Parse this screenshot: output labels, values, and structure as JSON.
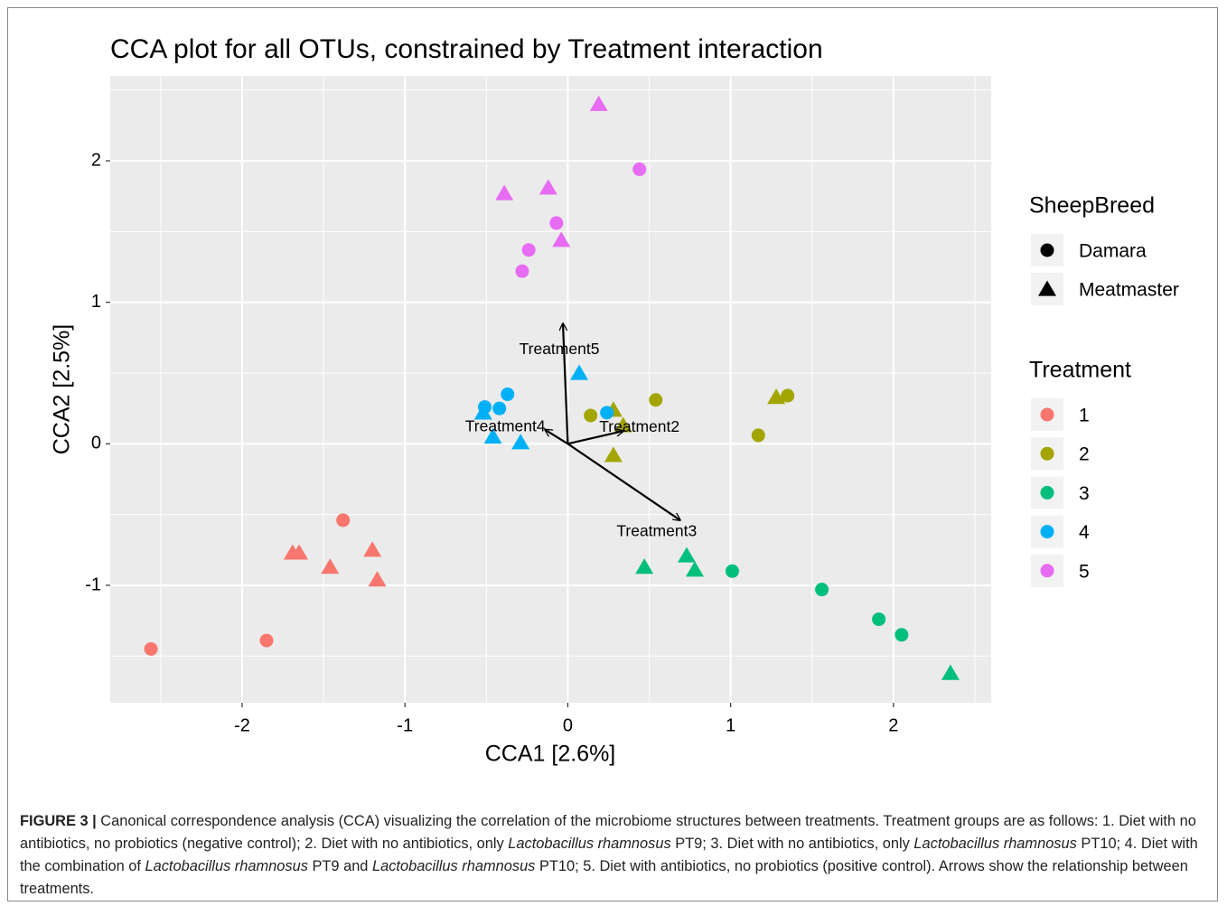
{
  "chart_data": {
    "type": "scatter",
    "title": "CCA plot for all OTUs, constrained by Treatment interaction",
    "x_label": "CCA1   [2.6%]",
    "y_label": "CCA2   [2.5%]",
    "xlim": [
      -2.81,
      2.6
    ],
    "ylim": [
      -1.83,
      2.6
    ],
    "xticks": [
      -2,
      -1,
      0,
      1,
      2
    ],
    "yticks": [
      -1,
      0,
      1,
      2
    ],
    "grid": true,
    "legend_position": "right",
    "shape_legend": {
      "title": "SheepBreed",
      "items": [
        {
          "name": "Damara",
          "shape": "circle"
        },
        {
          "name": "Meatmaster",
          "shape": "triangle"
        }
      ]
    },
    "color_legend_title": "Treatment",
    "series": [
      {
        "name": "1",
        "color": "#F8766D",
        "x": [
          -2.56,
          -1.85,
          -1.38,
          -1.69,
          -1.65,
          -1.46,
          -1.2,
          -1.17
        ],
        "y": [
          -1.45,
          -1.39,
          -0.54,
          -0.77,
          -0.77,
          -0.87,
          -0.75,
          -0.96
        ],
        "breed": [
          "Damara",
          "Damara",
          "Damara",
          "Meatmaster",
          "Meatmaster",
          "Meatmaster",
          "Meatmaster",
          "Meatmaster"
        ]
      },
      {
        "name": "2",
        "color": "#A3A500",
        "x": [
          0.14,
          0.54,
          1.17,
          1.35,
          0.28,
          0.34,
          0.28,
          1.28
        ],
        "y": [
          0.2,
          0.31,
          0.06,
          0.34,
          0.24,
          0.13,
          -0.08,
          0.33
        ],
        "breed": [
          "Damara",
          "Damara",
          "Damara",
          "Damara",
          "Meatmaster",
          "Meatmaster",
          "Meatmaster",
          "Meatmaster"
        ]
      },
      {
        "name": "3",
        "color": "#00BF7D",
        "x": [
          1.01,
          1.56,
          1.91,
          2.05,
          0.47,
          0.73,
          0.78,
          2.35
        ],
        "y": [
          -0.9,
          -1.03,
          -1.24,
          -1.35,
          -0.87,
          -0.79,
          -0.89,
          -1.62
        ],
        "breed": [
          "Damara",
          "Damara",
          "Damara",
          "Damara",
          "Meatmaster",
          "Meatmaster",
          "Meatmaster",
          "Meatmaster"
        ]
      },
      {
        "name": "4",
        "color": "#00B0F6",
        "x": [
          -0.51,
          -0.42,
          -0.37,
          0.24,
          -0.52,
          -0.46,
          -0.29,
          0.07
        ],
        "y": [
          0.26,
          0.25,
          0.35,
          0.22,
          0.22,
          0.05,
          0.01,
          0.5
        ],
        "breed": [
          "Damara",
          "Damara",
          "Damara",
          "Damara",
          "Meatmaster",
          "Meatmaster",
          "Meatmaster",
          "Meatmaster"
        ]
      },
      {
        "name": "5",
        "color": "#E76BF3",
        "x": [
          0.44,
          -0.07,
          -0.24,
          -0.28,
          0.19,
          -0.39,
          -0.12,
          -0.04
        ],
        "y": [
          1.94,
          1.56,
          1.37,
          1.22,
          2.4,
          1.77,
          1.81,
          1.44
        ],
        "breed": [
          "Damara",
          "Damara",
          "Damara",
          "Damara",
          "Meatmaster",
          "Meatmaster",
          "Meatmaster",
          "Meatmaster"
        ]
      }
    ],
    "arrows": [
      {
        "name": "Treatment5",
        "x": -0.03,
        "y": 0.85
      },
      {
        "name": "Treatment4",
        "x": -0.14,
        "y": 0.1
      },
      {
        "name": "Treatment2",
        "x": 0.34,
        "y": 0.09
      },
      {
        "name": "Treatment3",
        "x": 0.69,
        "y": -0.54
      }
    ]
  },
  "caption": {
    "label": "FIGURE 3 |",
    "segments": [
      {
        "text": " Canonical correspondence analysis (CCA) visualizing the correlation of the microbiome structures between treatments. Treatment groups are as follows: 1. Diet with no antibiotics, no probiotics (negative control); 2. Diet with no antibiotics, only ",
        "italic": false
      },
      {
        "text": "Lactobacillus rhamnosus",
        "italic": true
      },
      {
        "text": " PT9; 3. Diet with no antibiotics, only ",
        "italic": false
      },
      {
        "text": "Lactobacillus rhamnosus",
        "italic": true
      },
      {
        "text": " PT10; 4. Diet with the combination of ",
        "italic": false
      },
      {
        "text": "Lactobacillus rhamnosus",
        "italic": true
      },
      {
        "text": " PT9 and ",
        "italic": false
      },
      {
        "text": "Lactobacillus rhamnosus",
        "italic": true
      },
      {
        "text": " PT10; 5. Diet with antibiotics, no probiotics (positive control). Arrows show the relationship between treatments.",
        "italic": false
      }
    ]
  }
}
